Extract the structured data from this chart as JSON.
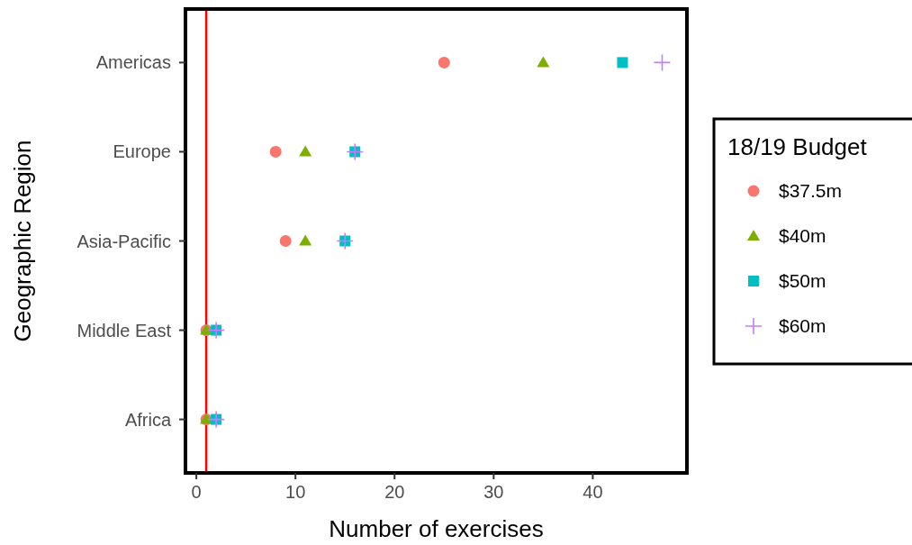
{
  "chart_data": {
    "type": "scatter",
    "orientation": "horizontal",
    "xlabel": "Number of exercises",
    "ylabel": "Geographic Region",
    "legend_title": "18/19 Budget",
    "legend": "right",
    "categories": [
      "Americas",
      "Europe",
      "Asia-Pacific",
      "Middle East",
      "Africa"
    ],
    "xlim": [
      -1.1,
      49.5
    ],
    "xticks": [
      0,
      10,
      20,
      30,
      40
    ],
    "grid": false,
    "series": [
      {
        "name": "$37.5m",
        "color": "#f8766d",
        "marker": "circle",
        "values": [
          25,
          8,
          9,
          1,
          1
        ]
      },
      {
        "name": "$40m",
        "color": "#7cae00",
        "marker": "triangle",
        "values": [
          35,
          11,
          11,
          1,
          1
        ]
      },
      {
        "name": "$50m",
        "color": "#00bfc4",
        "marker": "square",
        "values": [
          43,
          16,
          15,
          2,
          2
        ]
      },
      {
        "name": "$60m",
        "color": "#c77cff",
        "marker": "cross",
        "values": [
          47,
          16,
          15,
          2,
          2
        ]
      }
    ],
    "ref_lines": [
      {
        "axis": "x",
        "value": 1,
        "color": "#ff0000"
      }
    ]
  }
}
